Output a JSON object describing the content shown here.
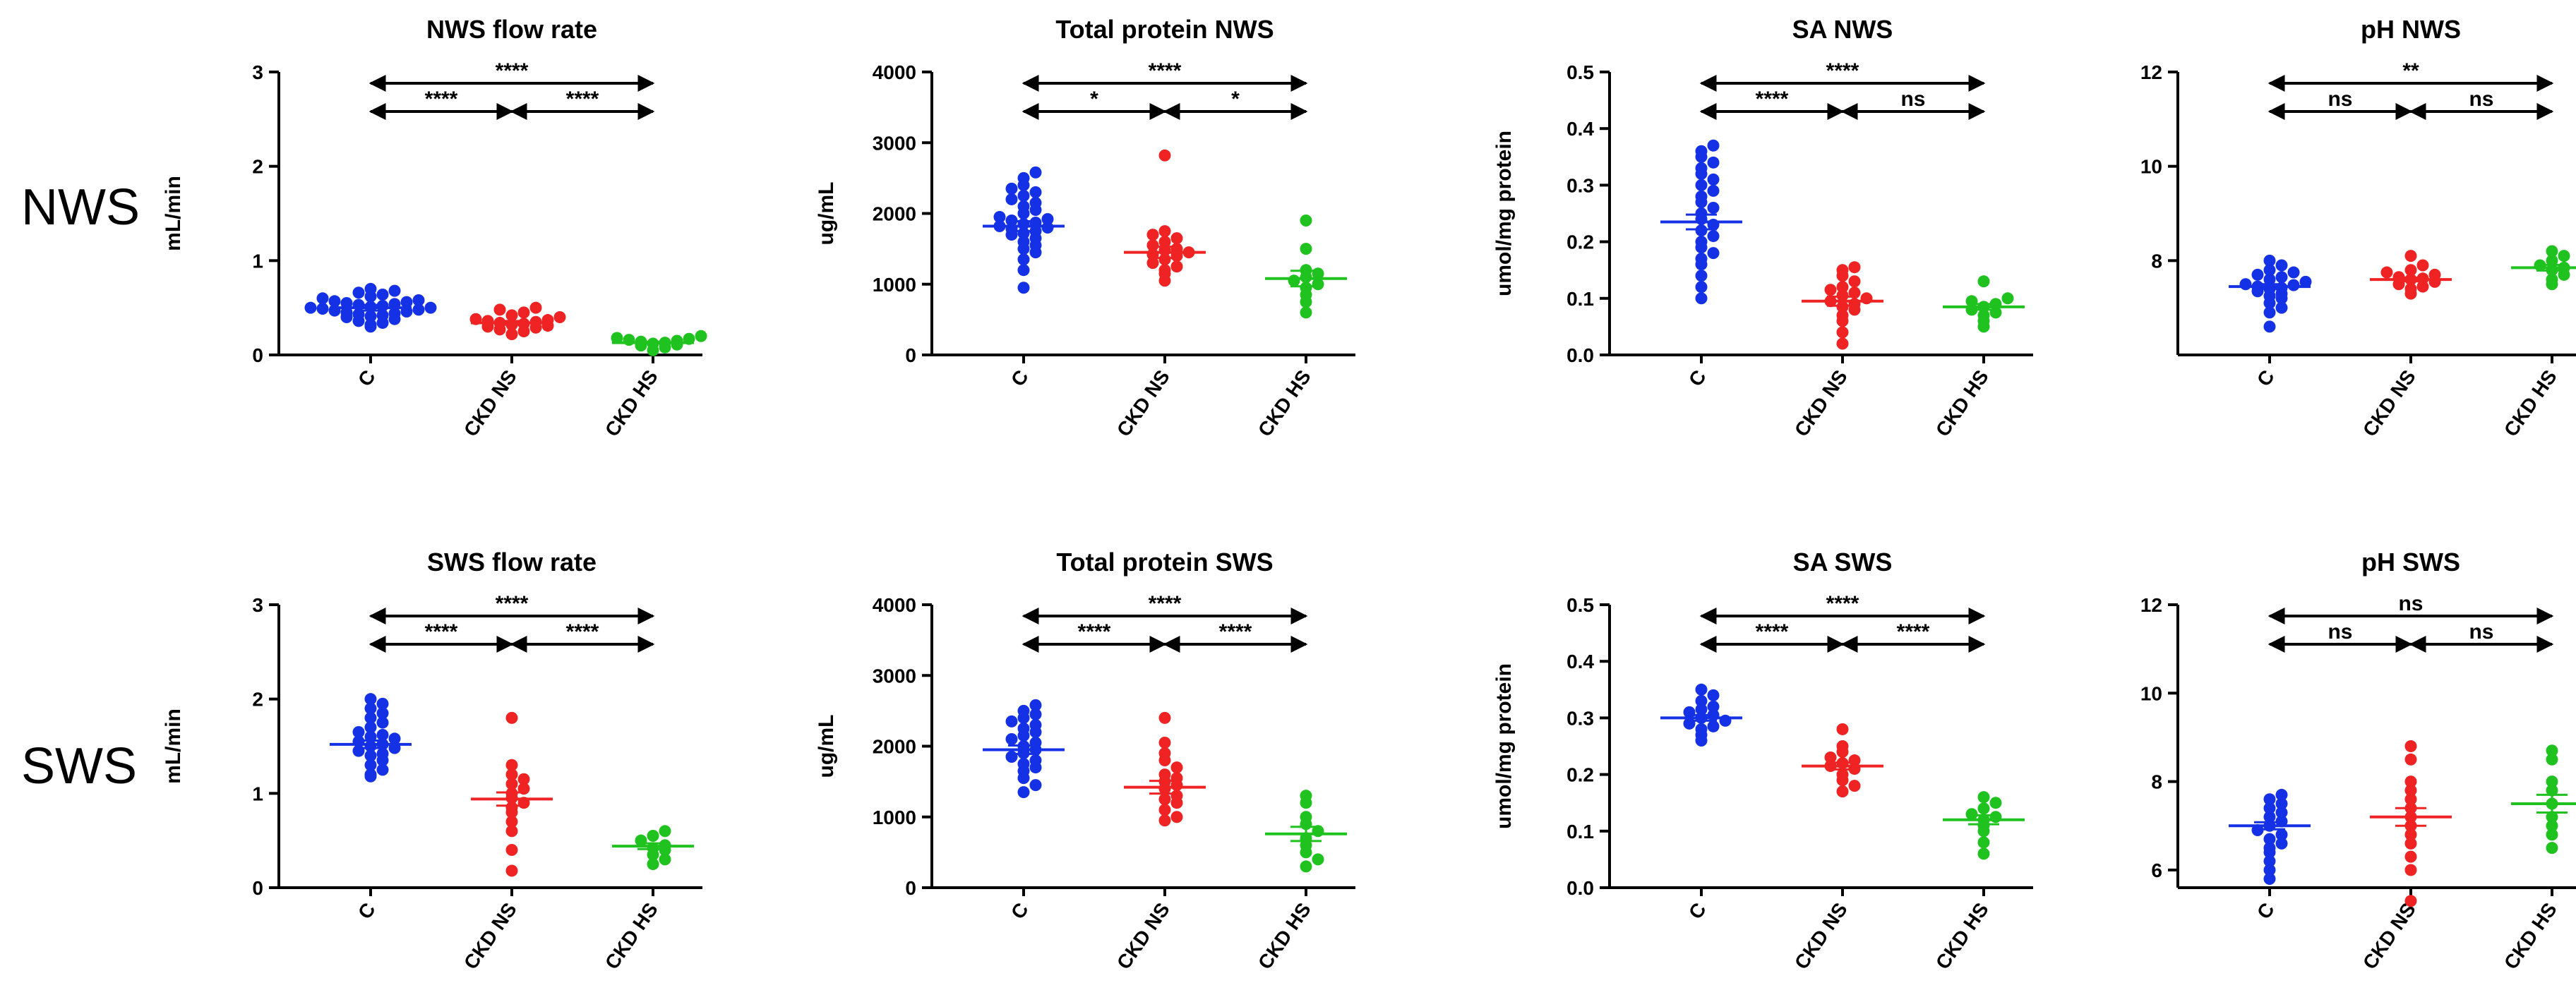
{
  "row_labels": [
    "NWS",
    "SWS"
  ],
  "colors": {
    "C": "#1531e6",
    "CKD NS": "#ef2323",
    "CKD HS": "#1fc21f",
    "axis": "#000000"
  },
  "chart_data": [
    {
      "id": "nws-flow",
      "type": "scatter",
      "title": "NWS flow rate",
      "ylabel": "mL/min",
      "ylim": [
        0,
        3
      ],
      "yticks": [
        "0",
        "1",
        "2",
        "3"
      ],
      "categories": [
        "C",
        "CKD NS",
        "CKD HS"
      ],
      "series": [
        {
          "name": "C",
          "mean": 0.5,
          "sem": 0.03,
          "values": [
            0.3,
            0.32,
            0.34,
            0.36,
            0.38,
            0.4,
            0.41,
            0.42,
            0.43,
            0.44,
            0.45,
            0.46,
            0.47,
            0.48,
            0.49,
            0.5,
            0.5,
            0.51,
            0.52,
            0.53,
            0.54,
            0.55,
            0.56,
            0.57,
            0.58,
            0.6,
            0.62,
            0.64,
            0.66,
            0.68,
            0.7
          ]
        },
        {
          "name": "CKD NS",
          "mean": 0.34,
          "sem": 0.02,
          "values": [
            0.22,
            0.25,
            0.27,
            0.29,
            0.3,
            0.31,
            0.32,
            0.33,
            0.34,
            0.35,
            0.36,
            0.37,
            0.38,
            0.4,
            0.42,
            0.45,
            0.48,
            0.5
          ]
        },
        {
          "name": "CKD HS",
          "mean": 0.13,
          "sem": 0.01,
          "values": [
            0.05,
            0.08,
            0.1,
            0.11,
            0.12,
            0.13,
            0.14,
            0.15,
            0.16,
            0.17,
            0.18,
            0.2
          ]
        }
      ],
      "significance": [
        "****",
        "****",
        "****"
      ]
    },
    {
      "id": "nws-protein",
      "type": "scatter",
      "title": "Total protein NWS",
      "ylabel": "ug/mL",
      "ylim": [
        0,
        4000
      ],
      "yticks": [
        "0",
        "1000",
        "2000",
        "3000",
        "4000"
      ],
      "categories": [
        "C",
        "CKD NS",
        "CKD HS"
      ],
      "series": [
        {
          "name": "C",
          "mean": 1820,
          "sem": 70,
          "values": [
            950,
            1200,
            1350,
            1450,
            1500,
            1550,
            1600,
            1650,
            1700,
            1720,
            1750,
            1780,
            1800,
            1820,
            1850,
            1870,
            1900,
            1920,
            1950,
            2000,
            2050,
            2100,
            2150,
            2200,
            2250,
            2300,
            2350,
            2400,
            2500,
            2580
          ]
        },
        {
          "name": "CKD NS",
          "mean": 1450,
          "sem": 80,
          "values": [
            1050,
            1150,
            1200,
            1250,
            1300,
            1350,
            1400,
            1420,
            1450,
            1480,
            1500,
            1550,
            1600,
            1650,
            1700,
            1750,
            2820
          ]
        },
        {
          "name": "CKD HS",
          "mean": 1080,
          "sem": 110,
          "values": [
            600,
            750,
            850,
            950,
            1000,
            1050,
            1100,
            1150,
            1200,
            1500,
            1900
          ]
        }
      ],
      "significance": [
        "****",
        "*",
        "*"
      ]
    },
    {
      "id": "nws-sa",
      "type": "scatter",
      "title": "SA NWS",
      "ylabel": "umol/mg protein",
      "ylim": [
        0,
        0.5
      ],
      "yticks": [
        "0.0",
        "0.1",
        "0.2",
        "0.3",
        "0.4",
        "0.5"
      ],
      "categories": [
        "C",
        "CKD NS",
        "CKD HS"
      ],
      "series": [
        {
          "name": "C",
          "mean": 0.235,
          "sem": 0.013,
          "values": [
            0.1,
            0.12,
            0.14,
            0.16,
            0.17,
            0.18,
            0.19,
            0.2,
            0.21,
            0.22,
            0.23,
            0.24,
            0.25,
            0.26,
            0.27,
            0.28,
            0.29,
            0.3,
            0.31,
            0.32,
            0.33,
            0.34,
            0.35,
            0.36,
            0.37
          ]
        },
        {
          "name": "CKD NS",
          "mean": 0.095,
          "sem": 0.008,
          "values": [
            0.02,
            0.04,
            0.06,
            0.07,
            0.08,
            0.085,
            0.09,
            0.095,
            0.1,
            0.105,
            0.11,
            0.115,
            0.12,
            0.13,
            0.14,
            0.15,
            0.155
          ]
        },
        {
          "name": "CKD HS",
          "mean": 0.085,
          "sem": 0.005,
          "values": [
            0.05,
            0.06,
            0.07,
            0.075,
            0.08,
            0.085,
            0.09,
            0.095,
            0.1,
            0.13
          ]
        }
      ],
      "significance": [
        "****",
        "****",
        "ns"
      ]
    },
    {
      "id": "nws-ph",
      "type": "scatter",
      "title": "pH NWS",
      "ylabel": "",
      "ylim": [
        6,
        12
      ],
      "yticks": [
        "8",
        "10",
        "12"
      ],
      "categories": [
        "C",
        "CKD NS",
        "CKD HS"
      ],
      "series": [
        {
          "name": "C",
          "mean": 7.45,
          "sem": 0.05,
          "values": [
            6.6,
            6.9,
            7.0,
            7.1,
            7.2,
            7.25,
            7.3,
            7.35,
            7.4,
            7.42,
            7.45,
            7.48,
            7.5,
            7.55,
            7.6,
            7.65,
            7.7,
            7.75,
            7.8,
            7.9,
            8.0
          ]
        },
        {
          "name": "CKD NS",
          "mean": 7.6,
          "sem": 0.04,
          "values": [
            7.3,
            7.4,
            7.45,
            7.5,
            7.55,
            7.6,
            7.62,
            7.65,
            7.7,
            7.75,
            7.8,
            7.9,
            8.1
          ]
        },
        {
          "name": "CKD HS",
          "mean": 7.85,
          "sem": 0.06,
          "values": [
            7.5,
            7.6,
            7.7,
            7.8,
            7.85,
            7.9,
            8.0,
            8.1,
            8.2
          ]
        }
      ],
      "significance": [
        "**",
        "ns",
        "ns"
      ]
    },
    {
      "id": "sws-flow",
      "type": "scatter",
      "title": "SWS flow rate",
      "ylabel": "mL/min",
      "ylim": [
        0,
        3
      ],
      "yticks": [
        "0",
        "1",
        "2",
        "3"
      ],
      "categories": [
        "C",
        "CKD NS",
        "CKD HS"
      ],
      "series": [
        {
          "name": "C",
          "mean": 1.52,
          "sem": 0.04,
          "values": [
            1.18,
            1.2,
            1.25,
            1.3,
            1.35,
            1.4,
            1.42,
            1.45,
            1.48,
            1.5,
            1.52,
            1.55,
            1.58,
            1.6,
            1.62,
            1.65,
            1.7,
            1.75,
            1.8,
            1.85,
            1.9,
            1.95,
            2.0
          ]
        },
        {
          "name": "CKD NS",
          "mean": 0.94,
          "sem": 0.07,
          "values": [
            0.18,
            0.4,
            0.6,
            0.7,
            0.8,
            0.85,
            0.9,
            0.95,
            1.0,
            1.05,
            1.1,
            1.15,
            1.2,
            1.3,
            1.8
          ]
        },
        {
          "name": "CKD HS",
          "mean": 0.44,
          "sem": 0.03,
          "values": [
            0.25,
            0.3,
            0.35,
            0.4,
            0.42,
            0.45,
            0.5,
            0.55,
            0.6
          ]
        }
      ],
      "significance": [
        "****",
        "****",
        "****"
      ]
    },
    {
      "id": "sws-protein",
      "type": "scatter",
      "title": "Total protein SWS",
      "ylabel": "ug/mL",
      "ylim": [
        0,
        4000
      ],
      "yticks": [
        "0",
        "1000",
        "2000",
        "3000",
        "4000"
      ],
      "categories": [
        "C",
        "CKD NS",
        "CKD HS"
      ],
      "series": [
        {
          "name": "C",
          "mean": 1950,
          "sem": 60,
          "values": [
            1350,
            1450,
            1550,
            1650,
            1700,
            1750,
            1800,
            1850,
            1900,
            1950,
            2000,
            2050,
            2100,
            2150,
            2200,
            2250,
            2300,
            2350,
            2400,
            2450,
            2500,
            2580
          ]
        },
        {
          "name": "CKD NS",
          "mean": 1420,
          "sem": 90,
          "values": [
            950,
            1000,
            1100,
            1200,
            1250,
            1300,
            1400,
            1450,
            1500,
            1550,
            1600,
            1700,
            1800,
            1900,
            2050,
            2400
          ]
        },
        {
          "name": "CKD HS",
          "mean": 760,
          "sem": 100,
          "values": [
            300,
            400,
            500,
            600,
            700,
            800,
            900,
            1000,
            1200,
            1300
          ]
        }
      ],
      "significance": [
        "****",
        "****",
        "****"
      ]
    },
    {
      "id": "sws-sa",
      "type": "scatter",
      "title": "SA SWS",
      "ylabel": "umol/mg protein",
      "ylim": [
        0,
        0.5
      ],
      "yticks": [
        "0.0",
        "0.1",
        "0.2",
        "0.3",
        "0.4",
        "0.5"
      ],
      "categories": [
        "C",
        "CKD NS",
        "CKD HS"
      ],
      "series": [
        {
          "name": "C",
          "mean": 0.3,
          "sem": 0.005,
          "values": [
            0.26,
            0.27,
            0.28,
            0.285,
            0.29,
            0.295,
            0.3,
            0.305,
            0.31,
            0.315,
            0.32,
            0.33,
            0.34,
            0.35
          ]
        },
        {
          "name": "CKD NS",
          "mean": 0.215,
          "sem": 0.006,
          "values": [
            0.17,
            0.18,
            0.19,
            0.2,
            0.21,
            0.215,
            0.22,
            0.225,
            0.23,
            0.24,
            0.25,
            0.28
          ]
        },
        {
          "name": "CKD HS",
          "mean": 0.12,
          "sem": 0.008,
          "values": [
            0.06,
            0.08,
            0.1,
            0.11,
            0.12,
            0.125,
            0.13,
            0.14,
            0.15,
            0.16
          ]
        }
      ],
      "significance": [
        "****",
        "****",
        "****"
      ]
    },
    {
      "id": "sws-ph",
      "type": "scatter",
      "title": "pH SWS",
      "ylabel": "",
      "ylim": [
        5.6,
        12
      ],
      "yticks": [
        "6",
        "8",
        "10",
        "12"
      ],
      "categories": [
        "C",
        "CKD NS",
        "CKD HS"
      ],
      "series": [
        {
          "name": "C",
          "mean": 7.0,
          "sem": 0.08,
          "values": [
            5.8,
            6.0,
            6.2,
            6.4,
            6.5,
            6.6,
            6.7,
            6.8,
            6.9,
            7.0,
            7.1,
            7.2,
            7.3,
            7.4,
            7.5,
            7.6,
            7.7
          ]
        },
        {
          "name": "CKD NS",
          "mean": 7.2,
          "sem": 0.2,
          "values": [
            5.3,
            6.0,
            6.3,
            6.6,
            6.8,
            7.0,
            7.2,
            7.4,
            7.6,
            7.8,
            8.0,
            8.5,
            8.8
          ]
        },
        {
          "name": "CKD HS",
          "mean": 7.5,
          "sem": 0.2,
          "values": [
            6.5,
            6.8,
            7.0,
            7.2,
            7.5,
            7.8,
            8.0,
            8.5,
            8.7
          ]
        }
      ],
      "significance": [
        "ns",
        "ns",
        "ns"
      ]
    }
  ]
}
